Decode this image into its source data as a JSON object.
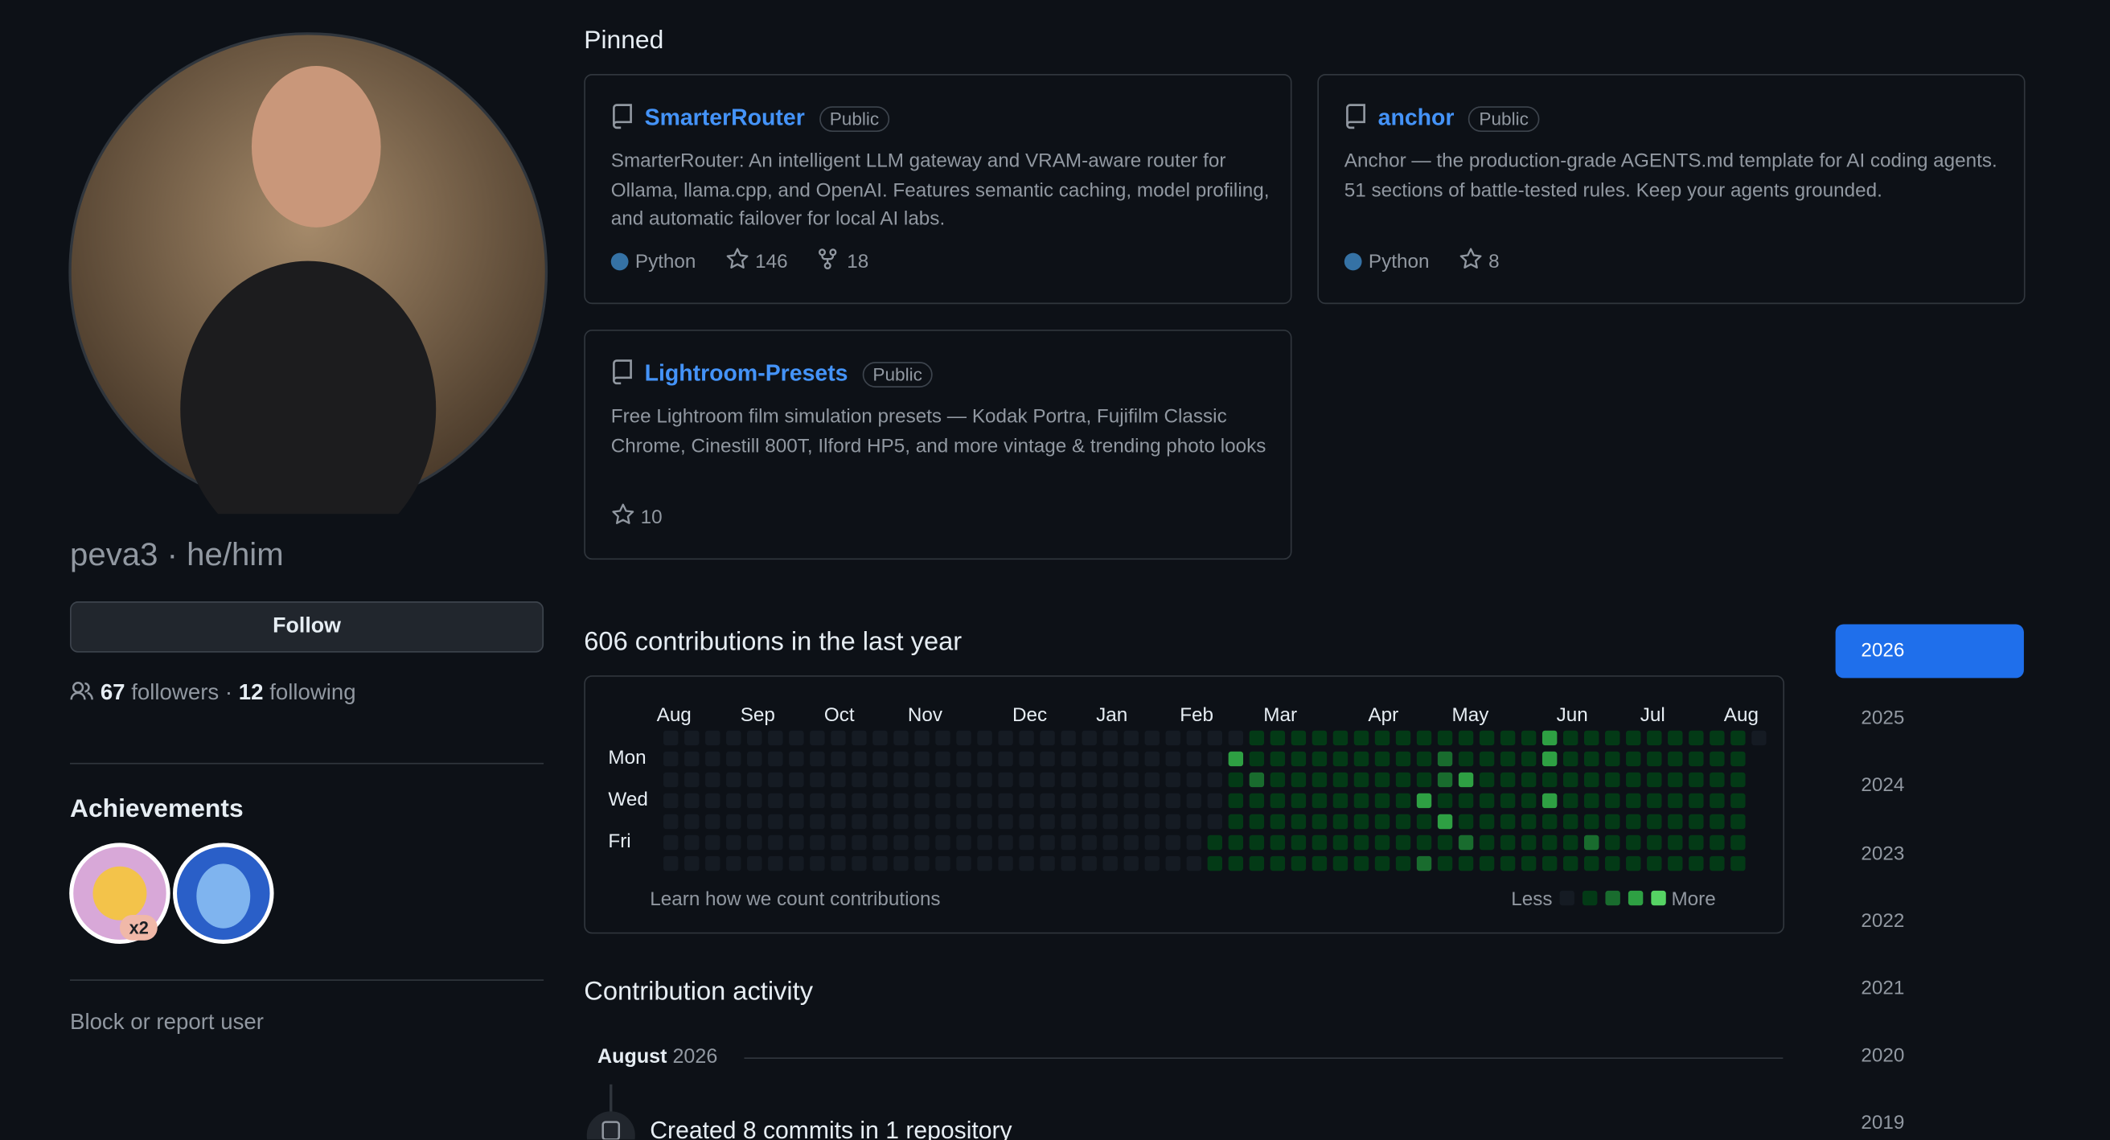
{
  "profile": {
    "name_line": "peva3 · he/him",
    "follow_button": "Follow",
    "followers_count": 67,
    "followers_label": "followers",
    "separator": "·",
    "following_count": 12,
    "following_label": "following",
    "achievements_title": "Achievements",
    "achievement_badge": "x2",
    "block_link": "Block or report user"
  },
  "pinned": {
    "title": "Pinned",
    "repos": [
      {
        "name": "SmarterRouter",
        "visibility": "Public",
        "description": "SmarterRouter: An intelligent LLM gateway and VRAM-aware router for Ollama, llama.cpp, and OpenAI. Features semantic caching, model profiling, and automatic failover for local AI labs.",
        "language": "Python",
        "stars": 146,
        "forks": 18
      },
      {
        "name": "anchor",
        "visibility": "Public",
        "description": "Anchor — the production-grade AGENTS.md template for AI coding agents. 51 sections of battle-tested rules. Keep your agents grounded.",
        "language": "Python",
        "stars": 8
      },
      {
        "name": "Lightroom-Presets",
        "visibility": "Public",
        "description": "Free Lightroom film simulation presets — Kodak Portra, Fujifilm Classic Chrome, Cinestill 800T, Ilford HP5, and more vintage & trending photo looks",
        "stars": 10
      }
    ]
  },
  "contributions": {
    "title": "606 contributions in the last year",
    "months": [
      "Aug",
      "Sep",
      "Oct",
      "Nov",
      "Dec",
      "Jan",
      "Feb",
      "Mar",
      "Apr",
      "May",
      "Jun",
      "Jul",
      "Aug"
    ],
    "days": [
      "Mon",
      "Wed",
      "Fri"
    ],
    "weeks": [
      [
        0,
        0,
        0,
        0,
        0,
        0,
        0
      ],
      [
        0,
        0,
        0,
        0,
        0,
        0,
        0
      ],
      [
        0,
        0,
        0,
        0,
        0,
        0,
        0
      ],
      [
        0,
        0,
        0,
        0,
        0,
        0,
        0
      ],
      [
        0,
        0,
        0,
        0,
        0,
        0,
        0
      ],
      [
        0,
        0,
        0,
        0,
        0,
        0,
        0
      ],
      [
        0,
        0,
        0,
        0,
        0,
        0,
        0
      ],
      [
        0,
        0,
        0,
        0,
        0,
        0,
        0
      ],
      [
        0,
        0,
        0,
        0,
        0,
        0,
        0
      ],
      [
        0,
        0,
        0,
        0,
        0,
        0,
        0
      ],
      [
        0,
        0,
        0,
        0,
        0,
        0,
        0
      ],
      [
        0,
        0,
        0,
        0,
        0,
        0,
        0
      ],
      [
        0,
        0,
        0,
        0,
        0,
        0,
        0
      ],
      [
        0,
        0,
        0,
        0,
        0,
        0,
        0
      ],
      [
        0,
        0,
        0,
        0,
        0,
        0,
        0
      ],
      [
        0,
        0,
        0,
        0,
        0,
        0,
        0
      ],
      [
        0,
        0,
        0,
        0,
        0,
        0,
        0
      ],
      [
        0,
        0,
        0,
        0,
        0,
        0,
        0
      ],
      [
        0,
        0,
        0,
        0,
        0,
        0,
        0
      ],
      [
        0,
        0,
        0,
        0,
        0,
        0,
        0
      ],
      [
        0,
        0,
        0,
        0,
        0,
        0,
        0
      ],
      [
        0,
        0,
        0,
        0,
        0,
        0,
        0
      ],
      [
        0,
        0,
        0,
        0,
        0,
        0,
        0
      ],
      [
        0,
        0,
        0,
        0,
        0,
        0,
        0
      ],
      [
        0,
        0,
        0,
        0,
        0,
        0,
        0
      ],
      [
        0,
        0,
        0,
        0,
        0,
        0,
        0
      ],
      [
        0,
        0,
        0,
        0,
        0,
        1,
        1
      ],
      [
        0,
        3,
        1,
        1,
        1,
        1,
        1
      ],
      [
        1,
        1,
        2,
        1,
        1,
        1,
        1
      ],
      [
        1,
        1,
        1,
        1,
        1,
        1,
        1
      ],
      [
        1,
        1,
        1,
        1,
        1,
        1,
        1
      ],
      [
        1,
        1,
        1,
        1,
        1,
        1,
        1
      ],
      [
        1,
        1,
        1,
        1,
        1,
        1,
        1
      ],
      [
        1,
        1,
        1,
        1,
        1,
        1,
        1
      ],
      [
        1,
        1,
        1,
        1,
        1,
        1,
        1
      ],
      [
        1,
        1,
        1,
        1,
        1,
        1,
        1
      ],
      [
        1,
        1,
        1,
        3,
        1,
        1,
        2
      ],
      [
        1,
        2,
        2,
        1,
        3,
        1,
        1
      ],
      [
        1,
        1,
        3,
        1,
        1,
        2,
        1
      ],
      [
        1,
        1,
        1,
        1,
        1,
        1,
        1
      ],
      [
        1,
        1,
        1,
        1,
        1,
        1,
        1
      ],
      [
        1,
        1,
        1,
        1,
        1,
        1,
        1
      ],
      [
        3,
        3,
        1,
        3,
        1,
        1,
        1
      ],
      [
        1,
        1,
        1,
        1,
        1,
        1,
        1
      ],
      [
        1,
        1,
        1,
        1,
        1,
        2,
        1
      ],
      [
        1,
        1,
        1,
        1,
        1,
        1,
        1
      ],
      [
        1,
        1,
        1,
        1,
        1,
        1,
        1
      ],
      [
        1,
        1,
        1,
        1,
        1,
        1,
        1
      ],
      [
        1,
        1,
        1,
        1,
        1,
        1,
        1
      ],
      [
        1,
        1,
        1,
        1,
        1,
        1,
        1
      ],
      [
        1,
        1,
        1,
        1,
        1,
        1,
        1
      ],
      [
        1,
        1,
        1,
        1,
        1,
        1,
        1
      ],
      [
        0
      ]
    ],
    "learn_link": "Learn how we count contributions",
    "legend_less": "Less",
    "legend_more": "More"
  },
  "years": [
    "2026",
    "2025",
    "2024",
    "2023",
    "2022",
    "2021",
    "2020",
    "2019"
  ],
  "activity": {
    "title": "Contribution activity",
    "month": "August",
    "year": "2026",
    "first_item": "Created 8 commits in 1 repository"
  }
}
